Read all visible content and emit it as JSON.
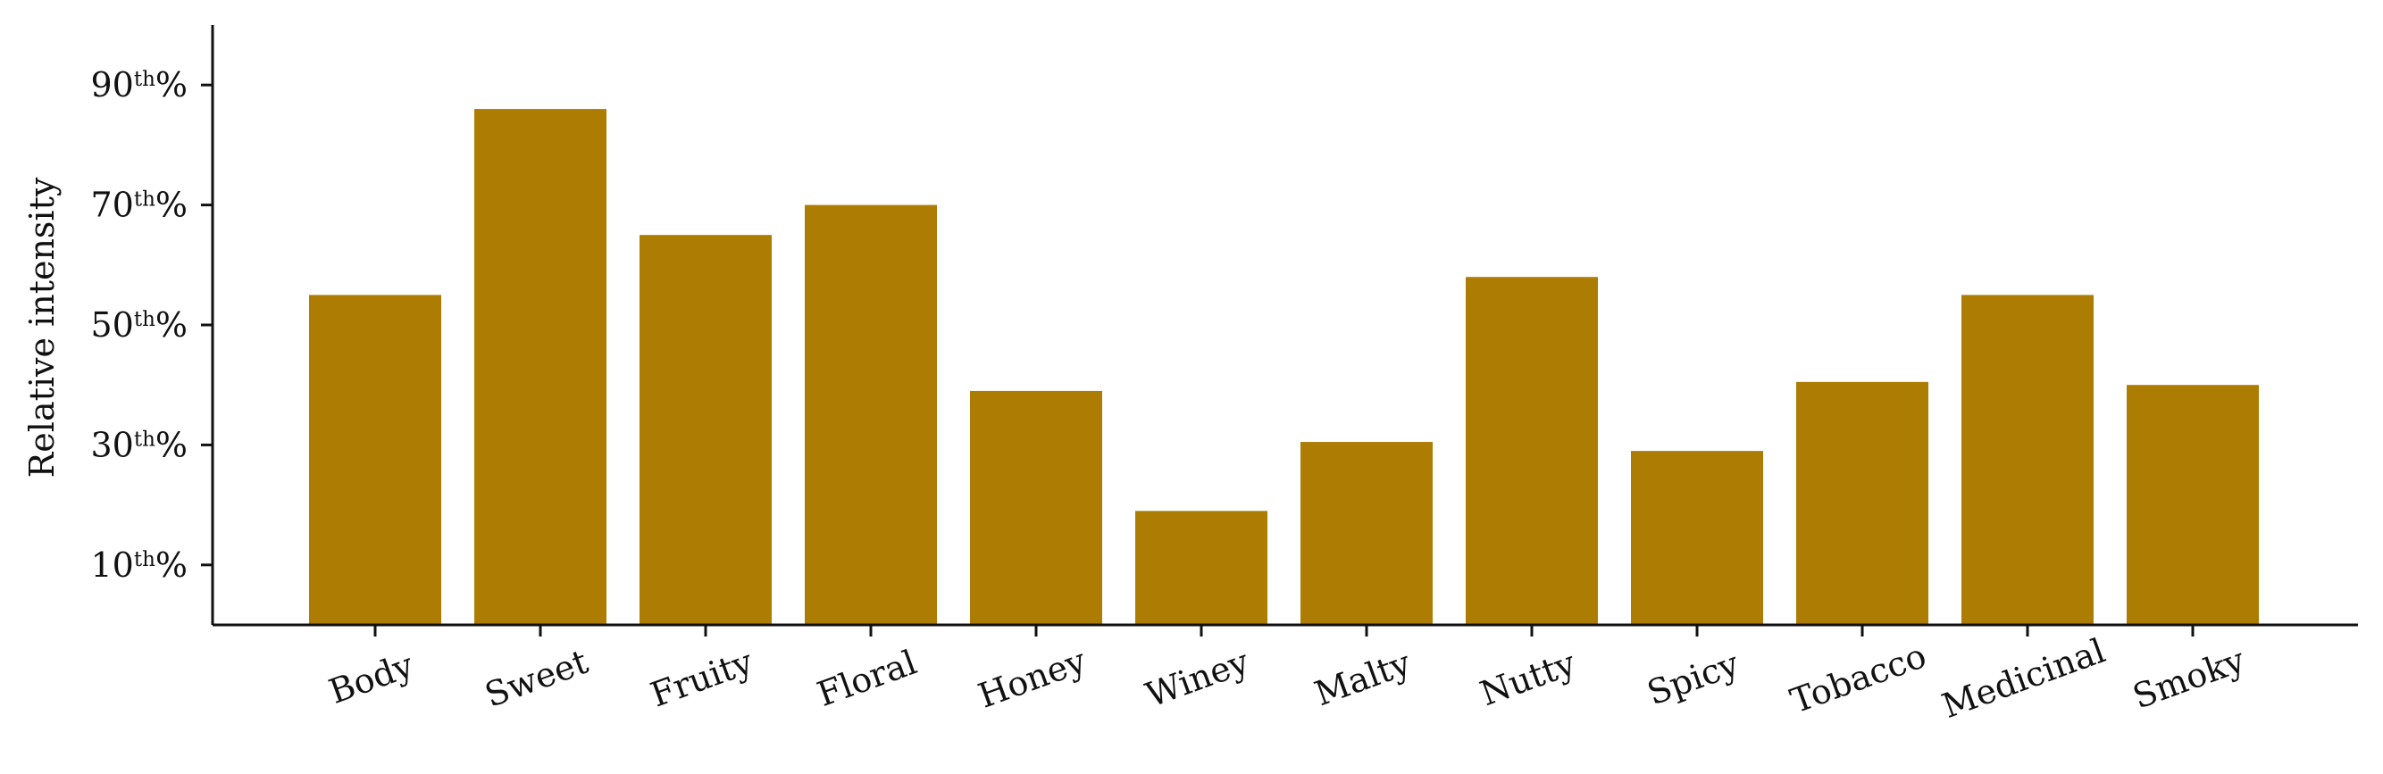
{
  "chart_data": {
    "type": "bar",
    "title": "",
    "xlabel": "",
    "ylabel": "Relative intensity",
    "ylim": [
      0,
      100
    ],
    "yticks": [
      {
        "value": 10,
        "num": "10",
        "sup": "th",
        "suffix": "%"
      },
      {
        "value": 30,
        "num": "30",
        "sup": "th",
        "suffix": "%"
      },
      {
        "value": 50,
        "num": "50",
        "sup": "th",
        "suffix": "%"
      },
      {
        "value": 70,
        "num": "70",
        "sup": "th",
        "suffix": "%"
      },
      {
        "value": 90,
        "num": "90",
        "sup": "th",
        "suffix": "%"
      }
    ],
    "categories": [
      "Body",
      "Sweet",
      "Fruity",
      "Floral",
      "Honey",
      "Winey",
      "Malty",
      "Nutty",
      "Spicy",
      "Tobacco",
      "Medicinal",
      "Smoky"
    ],
    "values": [
      55,
      86,
      65,
      70,
      39,
      19,
      30.5,
      58,
      29,
      40.5,
      55,
      40
    ],
    "bar_color": "#ad7c03",
    "grid": false,
    "legend": "none"
  }
}
